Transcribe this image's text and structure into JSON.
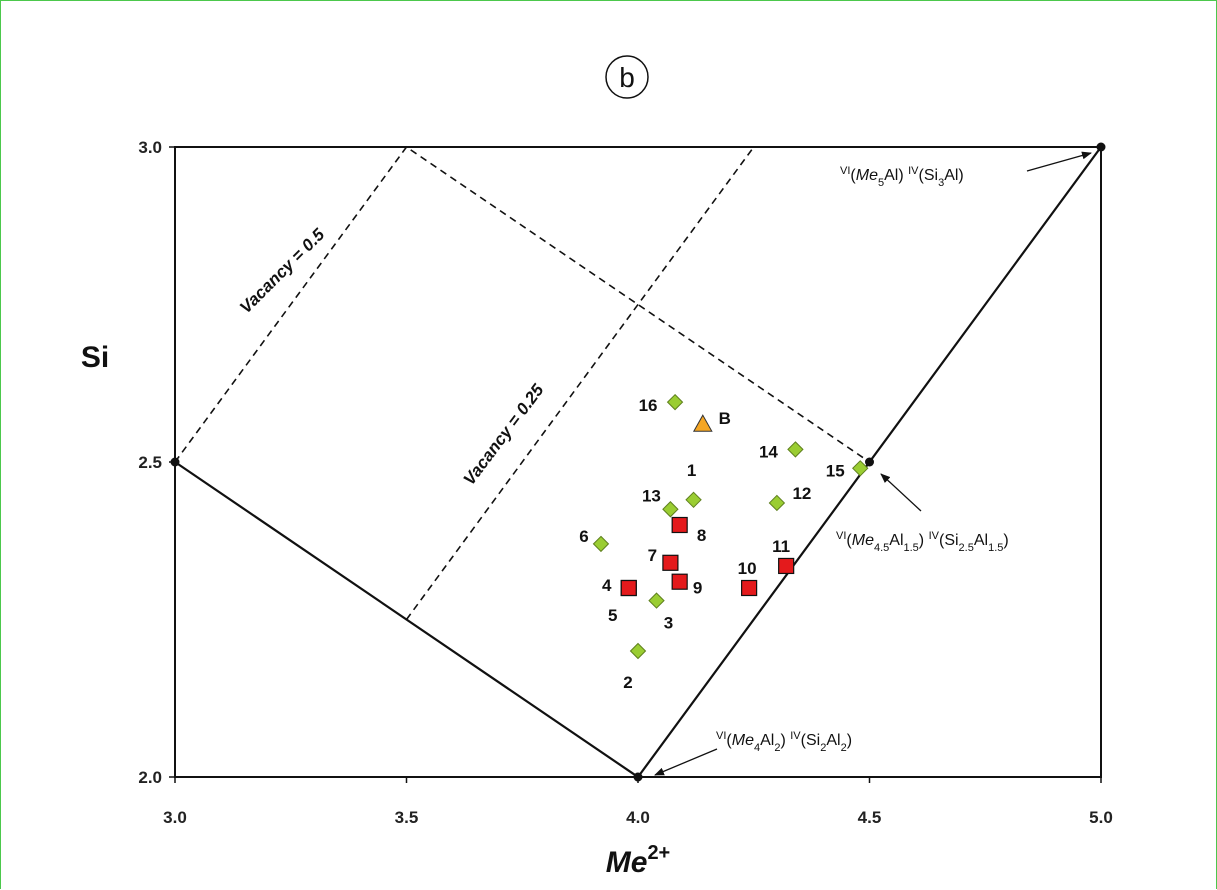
{
  "panel_label": "b",
  "chart_data": {
    "type": "scatter",
    "xlabel_main": "Me",
    "xlabel_sup": "2+",
    "ylabel": "Si",
    "xlim": [
      3.0,
      5.0
    ],
    "ylim": [
      2.0,
      3.0
    ],
    "x_ticks": [
      3.0,
      3.5,
      4.0,
      4.5,
      5.0
    ],
    "y_ticks": [
      2.0,
      2.5,
      3.0
    ],
    "x_tick_labels": [
      "3.0",
      "3.5",
      "4.0",
      "4.5",
      "5.0"
    ],
    "y_tick_labels": [
      "2.0",
      "2.5",
      "3.0"
    ],
    "grid": false,
    "boundary": [
      [
        3.0,
        2.5
      ],
      [
        4.0,
        2.0
      ],
      [
        5.0,
        3.0
      ]
    ],
    "vacancy_lines": [
      {
        "label": "Vacancy = 0.5",
        "points": [
          [
            3.0,
            2.5
          ],
          [
            3.5,
            3.0
          ],
          [
            4.5,
            2.5
          ]
        ]
      },
      {
        "label": "Vacancy = 0.25",
        "points": [
          [
            3.5,
            2.25
          ],
          [
            4.25,
            3.0
          ]
        ]
      }
    ],
    "vertices": [
      {
        "x": 3.0,
        "y": 2.5
      },
      {
        "x": 4.0,
        "y": 2.0
      },
      {
        "x": 4.5,
        "y": 2.5
      },
      {
        "x": 5.0,
        "y": 3.0
      }
    ],
    "annotations": [
      {
        "id": "top",
        "parts": [
          [
            "VI",
            "sup"
          ],
          [
            "(",
            ""
          ],
          [
            "Me",
            "it"
          ],
          [
            "5",
            "sub"
          ],
          [
            "Al) ",
            ""
          ],
          [
            "IV",
            "sup"
          ],
          [
            "(Si",
            ""
          ],
          [
            "3",
            "sub"
          ],
          [
            "Al)",
            ""
          ]
        ],
        "target": [
          5.0,
          3.0
        ]
      },
      {
        "id": "mid",
        "parts": [
          [
            "VI",
            "sup"
          ],
          [
            "(",
            ""
          ],
          [
            "Me",
            "it"
          ],
          [
            "4.5",
            "sub"
          ],
          [
            "Al",
            ""
          ],
          [
            "1.5",
            "sub"
          ],
          [
            ")  ",
            ""
          ],
          [
            "IV",
            "sup"
          ],
          [
            "(Si",
            ""
          ],
          [
            "2.5",
            "sub"
          ],
          [
            "Al",
            ""
          ],
          [
            "1.5",
            "sub"
          ],
          [
            ")",
            ""
          ]
        ],
        "target": [
          4.5,
          2.5
        ]
      },
      {
        "id": "bottom",
        "parts": [
          [
            "VI",
            "sup"
          ],
          [
            "(",
            ""
          ],
          [
            "Me",
            "it"
          ],
          [
            "4",
            "sub"
          ],
          [
            "Al",
            ""
          ],
          [
            "2",
            "sub"
          ],
          [
            ") ",
            ""
          ],
          [
            "IV",
            "sup"
          ],
          [
            "(Si",
            ""
          ],
          [
            "2",
            "sub"
          ],
          [
            "Al",
            ""
          ],
          [
            "2",
            "sub"
          ],
          [
            ")",
            ""
          ]
        ],
        "target": [
          4.0,
          2.0
        ]
      }
    ],
    "series": [
      {
        "marker": "diamond",
        "color": "#9acd32",
        "points": [
          {
            "label": "1",
            "x": 4.12,
            "y": 2.44
          },
          {
            "label": "2",
            "x": 4.0,
            "y": 2.2
          },
          {
            "label": "3",
            "x": 4.04,
            "y": 2.28
          },
          {
            "label": "6",
            "x": 3.92,
            "y": 2.37
          },
          {
            "label": "12",
            "x": 4.3,
            "y": 2.435
          },
          {
            "label": "13",
            "x": 4.07,
            "y": 2.425
          },
          {
            "label": "14",
            "x": 4.34,
            "y": 2.52
          },
          {
            "label": "15",
            "x": 4.48,
            "y": 2.49
          },
          {
            "label": "16",
            "x": 4.08,
            "y": 2.595
          }
        ]
      },
      {
        "marker": "square",
        "color": "#e41a1c",
        "points": [
          {
            "label": "4",
            "x": 3.98,
            "y": 2.3
          },
          {
            "label": "5",
            "x": 3.98,
            "y": 2.3
          },
          {
            "label": "7",
            "x": 4.07,
            "y": 2.34
          },
          {
            "label": "8",
            "x": 4.09,
            "y": 2.4
          },
          {
            "label": "9",
            "x": 4.09,
            "y": 2.31
          },
          {
            "label": "10",
            "x": 4.24,
            "y": 2.3
          },
          {
            "label": "11",
            "x": 4.32,
            "y": 2.335
          }
        ]
      },
      {
        "marker": "triangle",
        "color": "#f5a623",
        "points": [
          {
            "label": "B",
            "x": 4.14,
            "y": 2.56
          }
        ]
      }
    ]
  }
}
